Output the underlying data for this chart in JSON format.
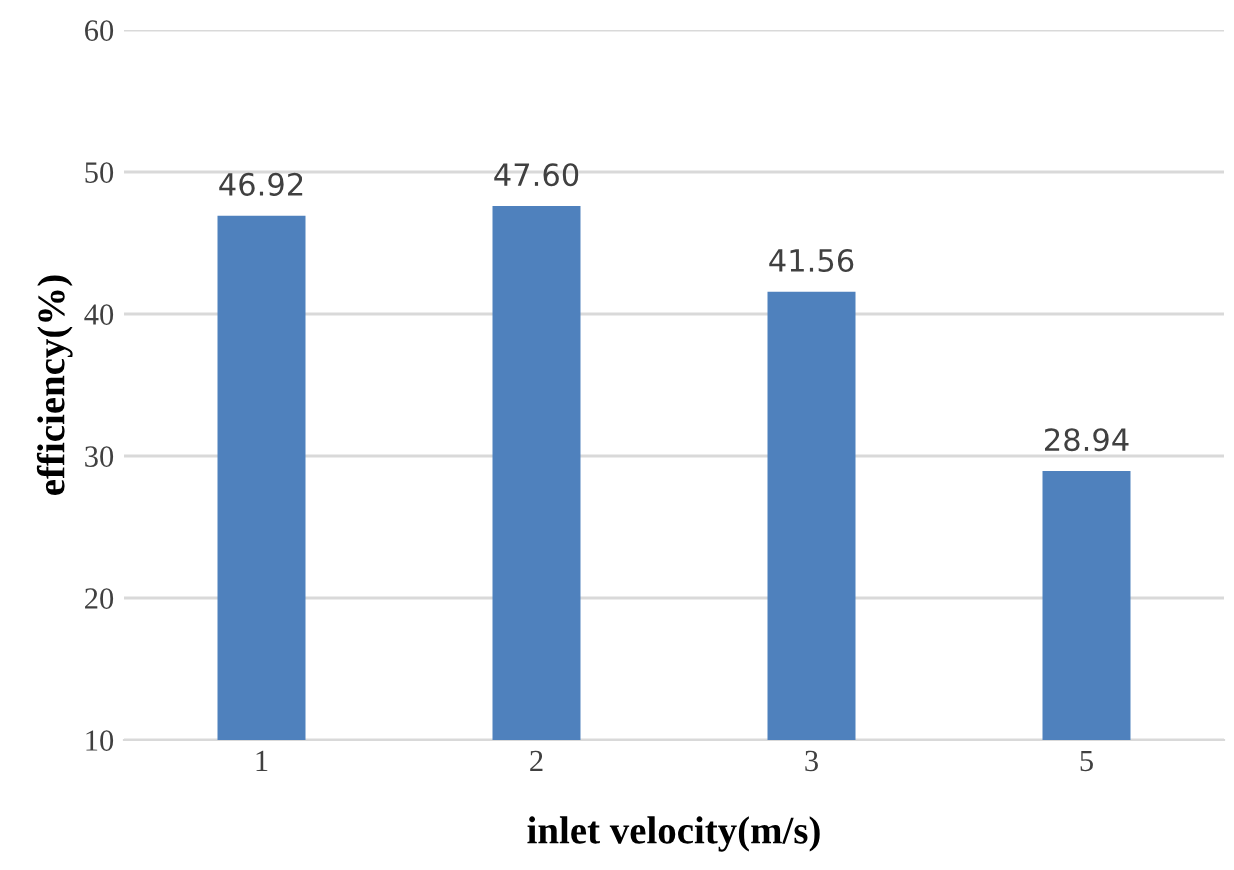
{
  "chart_data": {
    "type": "bar",
    "xlabel": "inlet velocity(m/s)",
    "ylabel": "efficiency(%)",
    "categories": [
      "1",
      "2",
      "3",
      "5"
    ],
    "values": [
      46.92,
      47.6,
      41.56,
      28.94
    ],
    "value_labels": [
      "46.92",
      "47.60",
      "41.56",
      "28.94"
    ],
    "color": "#4f81bd",
    "ylim": [
      10,
      60
    ],
    "yticks": [
      10,
      20,
      30,
      40,
      50,
      60
    ],
    "grid": "y"
  }
}
